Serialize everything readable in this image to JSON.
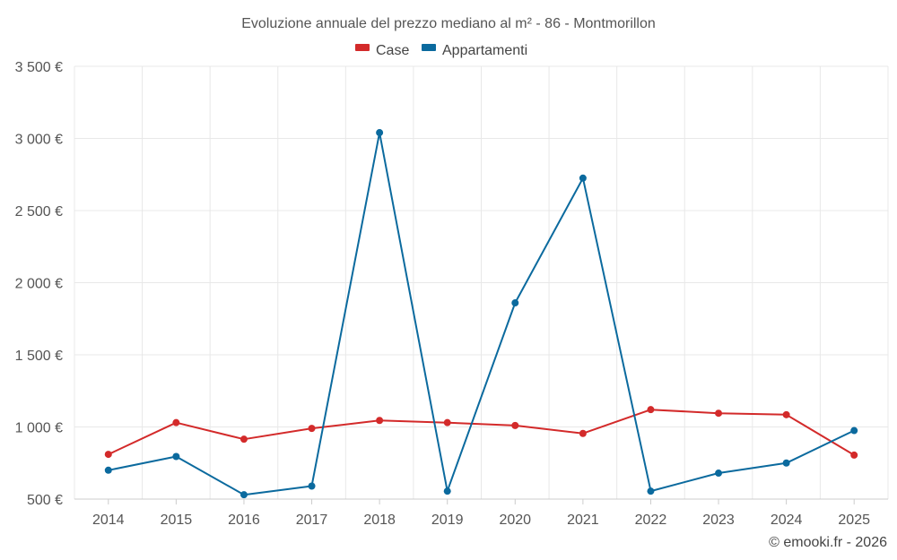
{
  "chart_data": {
    "type": "line",
    "title": "Evoluzione annuale del prezzo mediano al m² - 86 - Montmorillon",
    "categories": [
      "2014",
      "2015",
      "2016",
      "2017",
      "2018",
      "2019",
      "2020",
      "2021",
      "2022",
      "2023",
      "2024",
      "2025"
    ],
    "series": [
      {
        "name": "Case",
        "color": "#d32a2a",
        "values": [
          810,
          1030,
          915,
          990,
          1045,
          1030,
          1010,
          955,
          1120,
          1095,
          1085,
          805
        ]
      },
      {
        "name": "Appartamenti",
        "color": "#0b6a9e",
        "values": [
          700,
          795,
          530,
          590,
          3040,
          555,
          1860,
          2725,
          555,
          680,
          750,
          975
        ]
      }
    ],
    "ylim": [
      500,
      3500
    ],
    "yticks": [
      500,
      1000,
      1500,
      2000,
      2500,
      3000,
      3500
    ],
    "ytick_labels": [
      "500 €",
      "1 000 €",
      "1 500 €",
      "2 000 €",
      "2 500 €",
      "3 000 €",
      "3 500 €"
    ],
    "xlabel": "",
    "ylabel": "",
    "grid": true,
    "legend_position": "top-center"
  },
  "credit": "© emooki.fr - 2026"
}
